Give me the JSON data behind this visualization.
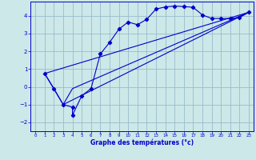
{
  "xlabel": "Graphe des températures (°c)",
  "background_color": "#cce8e8",
  "grid_color": "#99bbcc",
  "line_color": "#0000cc",
  "xlim": [
    -0.5,
    23.5
  ],
  "ylim": [
    -2.5,
    4.8
  ],
  "yticks": [
    -2,
    -1,
    0,
    1,
    2,
    3,
    4
  ],
  "xticks": [
    0,
    1,
    2,
    3,
    4,
    5,
    6,
    7,
    8,
    9,
    10,
    11,
    12,
    13,
    14,
    15,
    16,
    17,
    18,
    19,
    20,
    21,
    22,
    23
  ],
  "line1_x": [
    1,
    2,
    3,
    4,
    4,
    5,
    6,
    7,
    8,
    9,
    10,
    11,
    12,
    13,
    14,
    15,
    16,
    17,
    18,
    19,
    20,
    21,
    22,
    23
  ],
  "line1_y": [
    0.75,
    -0.1,
    -1.0,
    -1.15,
    -1.6,
    -0.5,
    -0.1,
    1.85,
    2.5,
    3.25,
    3.65,
    3.5,
    3.8,
    4.38,
    4.5,
    4.55,
    4.52,
    4.48,
    4.05,
    3.85,
    3.85,
    3.85,
    3.9,
    4.2
  ],
  "line2_x": [
    1,
    3,
    4,
    23
  ],
  "line2_y": [
    0.75,
    -1.0,
    -0.1,
    4.2
  ],
  "line3_x": [
    3,
    23
  ],
  "line3_y": [
    -1.0,
    4.2
  ],
  "line4_x": [
    1,
    23
  ],
  "line4_y": [
    0.75,
    4.2
  ]
}
